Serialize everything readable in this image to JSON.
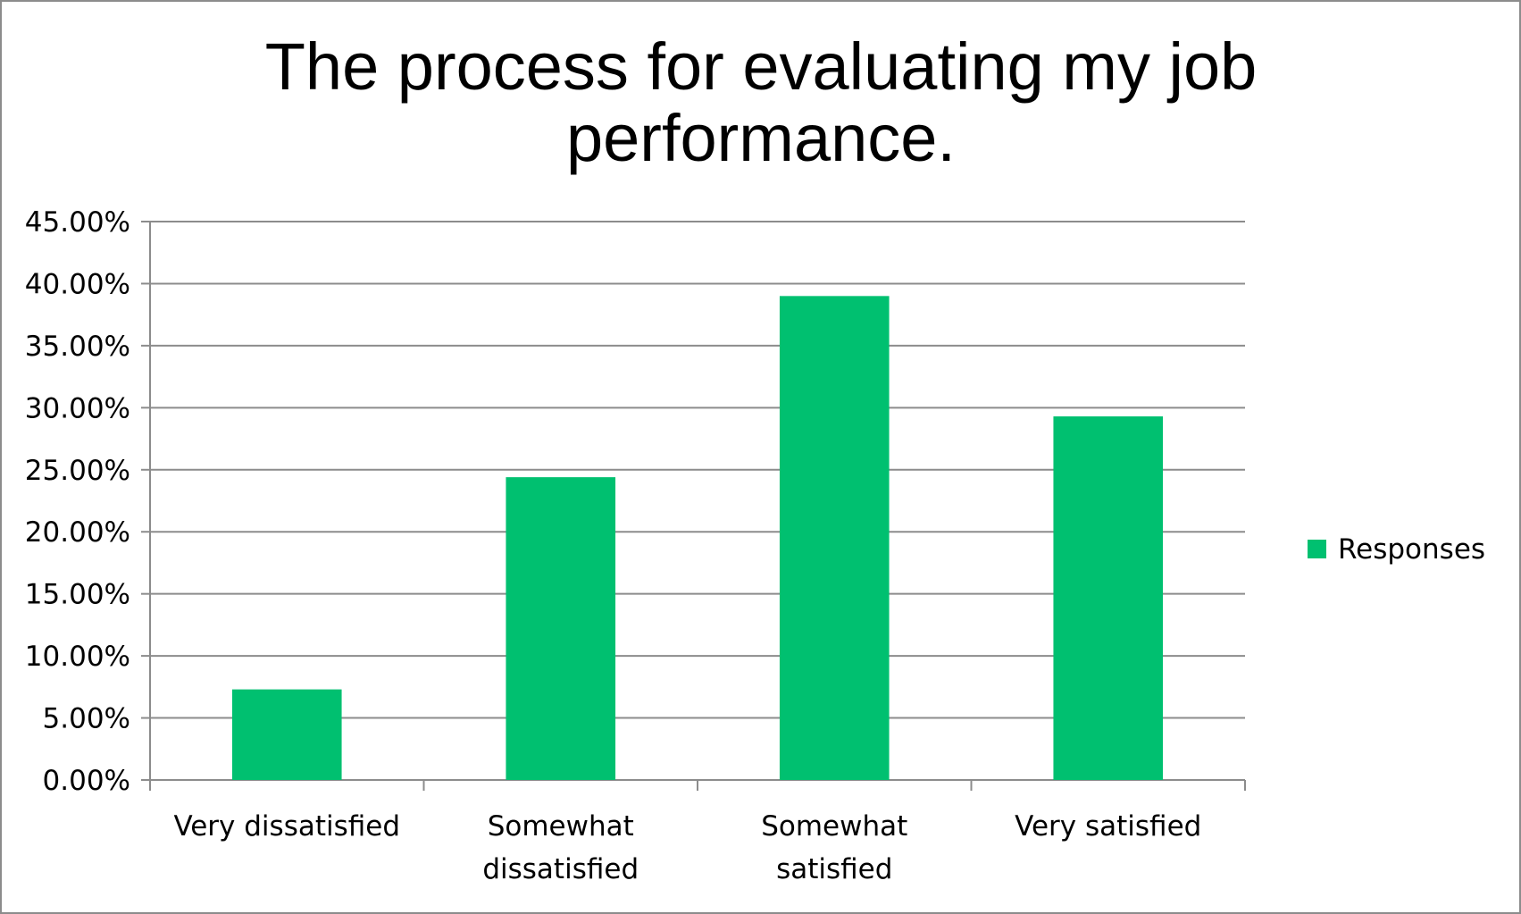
{
  "chart_data": {
    "type": "bar",
    "title": "The process for evaluating my job performance.",
    "title_lines": [
      "The process for evaluating my job",
      "performance."
    ],
    "categories": [
      [
        "Very dissatisfied"
      ],
      [
        "Somewhat",
        "dissatisfied"
      ],
      [
        "Somewhat",
        "satisfied"
      ],
      [
        "Very satisfied"
      ]
    ],
    "category_labels": [
      "Very dissatisfied",
      "Somewhat dissatisfied",
      "Somewhat satisfied",
      "Very satisfied"
    ],
    "series": [
      {
        "name": "Responses",
        "color": "#00c070",
        "values": [
          7.3,
          24.4,
          39.0,
          29.3
        ]
      }
    ],
    "y_unit": "%",
    "ylim": [
      0,
      45
    ],
    "y_ticks": [
      0,
      5,
      10,
      15,
      20,
      25,
      30,
      35,
      40,
      45
    ],
    "y_tick_labels": [
      "0.00%",
      "5.00%",
      "10.00%",
      "15.00%",
      "20.00%",
      "25.00%",
      "30.00%",
      "35.00%",
      "40.00%",
      "45.00%"
    ],
    "grid": true,
    "legend_position": "right",
    "xlabel": "",
    "ylabel": ""
  }
}
